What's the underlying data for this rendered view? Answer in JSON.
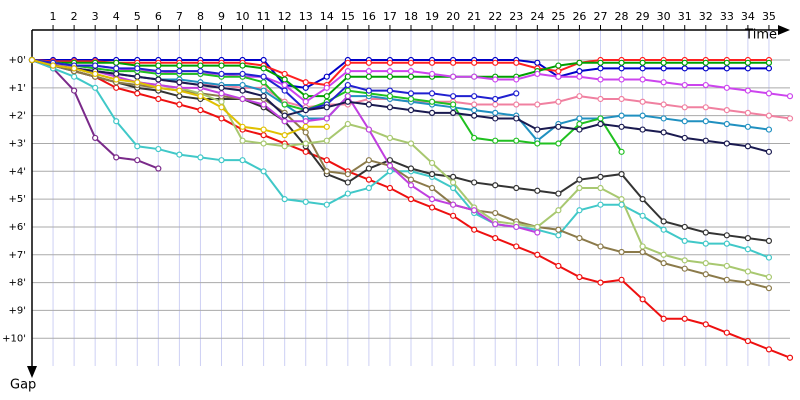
{
  "chart_data": {
    "type": "line",
    "x_label": "Time",
    "y_label": "Gap",
    "x": [
      0,
      1,
      2,
      3,
      4,
      5,
      6,
      7,
      8,
      9,
      10,
      11,
      12,
      13,
      14,
      15,
      16,
      17,
      18,
      19,
      20,
      21,
      22,
      23,
      24,
      25,
      26,
      27,
      28,
      29,
      30,
      31,
      32,
      33,
      34,
      35,
      36
    ],
    "xlim": [
      0,
      36
    ],
    "xticks": [
      1,
      2,
      3,
      4,
      5,
      6,
      7,
      8,
      9,
      10,
      11,
      12,
      13,
      14,
      15,
      16,
      17,
      18,
      19,
      20,
      21,
      22,
      23,
      24,
      25,
      26,
      27,
      28,
      29,
      30,
      31,
      32,
      33,
      34,
      35
    ],
    "ylim": [
      -1.1,
      11.5
    ],
    "yticks": [
      {
        "value": 0,
        "label": "+0'"
      },
      {
        "value": 1,
        "label": "+1'"
      },
      {
        "value": 2,
        "label": "+2'"
      },
      {
        "value": 3,
        "label": "+3'"
      },
      {
        "value": 4,
        "label": "+4'"
      },
      {
        "value": 5,
        "label": "+5'"
      },
      {
        "value": 6,
        "label": "+6'"
      },
      {
        "value": 7,
        "label": "+7'"
      },
      {
        "value": 8,
        "label": "+8'"
      },
      {
        "value": 9,
        "label": "+9'"
      },
      {
        "value": 10,
        "label": "+10'"
      }
    ],
    "grid": true,
    "series": [
      {
        "color": "#0000c8",
        "values": [
          0,
          0,
          0,
          0,
          0,
          0,
          0,
          0,
          0,
          0,
          0,
          0,
          0.9,
          1.0,
          0.6,
          0,
          0,
          0,
          0,
          0,
          0,
          0,
          0,
          0,
          0.1,
          0.6,
          0.4,
          0.3,
          0.3,
          0.3,
          0.3,
          0.3,
          0.3,
          0.3,
          0.3,
          0.3,
          null
        ]
      },
      {
        "color": "#ff2020",
        "values": [
          0,
          0.05,
          0.05,
          0.05,
          0.1,
          0.1,
          0.1,
          0.1,
          0.1,
          0.1,
          0.1,
          0.2,
          0.5,
          0.8,
          0.9,
          0.1,
          0.1,
          0.1,
          0.1,
          0.1,
          0.1,
          0.1,
          0.1,
          0.1,
          0.3,
          0.4,
          0.1,
          0,
          0,
          0,
          0,
          0,
          0,
          0,
          0,
          0,
          null
        ]
      },
      {
        "color": "#00a000",
        "values": [
          0,
          0.1,
          0.1,
          0.1,
          0.1,
          0.2,
          0.2,
          0.2,
          0.2,
          0.2,
          0.2,
          0.3,
          0.7,
          1.3,
          1.3,
          0.6,
          0.6,
          0.6,
          0.6,
          0.6,
          0.6,
          0.6,
          0.6,
          0.6,
          0.4,
          0.2,
          0.1,
          0.1,
          0.1,
          0.1,
          0.1,
          0.1,
          0.1,
          0.1,
          0.1,
          0.1,
          null
        ]
      },
      {
        "color": "#cc44ee",
        "values": [
          0,
          0.1,
          0.2,
          0.2,
          0.3,
          0.4,
          0.4,
          0.5,
          0.5,
          0.5,
          0.6,
          0.6,
          0.9,
          1.5,
          1.0,
          0.4,
          0.4,
          0.4,
          0.4,
          0.5,
          0.6,
          0.6,
          0.7,
          0.7,
          0.5,
          0.6,
          0.6,
          0.7,
          0.7,
          0.7,
          0.8,
          0.9,
          0.9,
          1.0,
          1.1,
          1.2,
          1.3
        ]
      },
      {
        "color": "#ee1010",
        "values": [
          0,
          0.1,
          0.4,
          0.6,
          1.0,
          1.2,
          1.4,
          1.6,
          1.8,
          2.1,
          2.5,
          2.7,
          3.0,
          3.3,
          3.6,
          4.0,
          4.3,
          4.6,
          5.0,
          5.3,
          5.6,
          6.1,
          6.4,
          6.7,
          7.0,
          7.4,
          7.8,
          8.0,
          7.9,
          8.6,
          9.3,
          9.3,
          9.5,
          9.8,
          10.1,
          10.4,
          10.7
        ]
      },
      {
        "color": "#7a2a8a",
        "values": [
          0,
          0.3,
          1.1,
          2.8,
          3.5,
          3.6,
          3.9,
          null,
          null,
          null,
          null,
          null,
          null,
          null,
          null,
          null,
          null,
          null,
          null,
          null,
          null,
          null,
          null,
          null,
          null,
          null,
          null,
          null,
          null,
          null,
          null,
          null,
          null,
          null,
          null,
          null,
          null
        ]
      },
      {
        "color": "#40c8c8",
        "values": [
          0,
          0.3,
          0.6,
          1.0,
          2.2,
          3.1,
          3.2,
          3.4,
          3.5,
          3.6,
          3.6,
          4.0,
          5.0,
          5.1,
          5.2,
          4.8,
          4.6,
          4.0,
          4.0,
          4.2,
          4.6,
          5.5,
          5.9,
          6.0,
          6.1,
          6.3,
          5.4,
          5.2,
          5.2,
          5.6,
          6.1,
          6.5,
          6.6,
          6.6,
          6.8,
          7.1,
          null
        ]
      },
      {
        "color": "#333333",
        "values": [
          0,
          0.2,
          0.4,
          0.6,
          0.8,
          1.0,
          1.1,
          1.3,
          1.4,
          1.4,
          1.4,
          1.7,
          2.2,
          3.1,
          4.1,
          4.4,
          3.9,
          3.6,
          3.9,
          4.1,
          4.2,
          4.4,
          4.5,
          4.6,
          4.7,
          4.8,
          4.3,
          4.2,
          4.1,
          5.0,
          5.8,
          6.0,
          6.2,
          6.3,
          6.4,
          6.5,
          null
        ]
      },
      {
        "color": "#8b7a4a",
        "values": [
          0,
          0.2,
          0.4,
          0.6,
          0.8,
          0.9,
          1.0,
          1.1,
          1.2,
          1.3,
          1.4,
          1.4,
          1.9,
          2.6,
          4.0,
          4.1,
          3.6,
          3.8,
          4.3,
          4.6,
          5.2,
          5.4,
          5.5,
          5.8,
          6.0,
          6.1,
          6.4,
          6.7,
          6.9,
          6.9,
          7.3,
          7.5,
          7.7,
          7.9,
          8.0,
          8.2,
          null
        ]
      },
      {
        "color": "#a8c870",
        "values": [
          0,
          0.2,
          0.3,
          0.5,
          0.7,
          0.8,
          0.9,
          1.0,
          1.2,
          1.5,
          2.9,
          3.0,
          3.1,
          3.0,
          2.9,
          2.3,
          2.5,
          2.8,
          3.0,
          3.7,
          4.4,
          5.3,
          5.8,
          5.9,
          6.0,
          5.4,
          4.6,
          4.6,
          5.0,
          6.7,
          7.0,
          7.2,
          7.3,
          7.4,
          7.6,
          7.8,
          null
        ]
      },
      {
        "color": "#f080a0",
        "values": [
          0,
          0.1,
          0.3,
          0.4,
          0.5,
          0.6,
          0.7,
          0.8,
          0.9,
          0.9,
          1.0,
          1.0,
          1.5,
          1.7,
          1.6,
          1.6,
          1.4,
          1.4,
          1.5,
          1.5,
          1.5,
          1.6,
          1.6,
          1.6,
          1.6,
          1.5,
          1.3,
          1.4,
          1.4,
          1.5,
          1.6,
          1.7,
          1.7,
          1.8,
          1.9,
          2.0,
          2.1
        ]
      },
      {
        "color": "#2090c0",
        "values": [
          0,
          0.2,
          0.3,
          0.4,
          0.5,
          0.6,
          0.7,
          0.7,
          0.8,
          0.9,
          0.9,
          1.1,
          1.6,
          2.1,
          2.1,
          1.3,
          1.3,
          1.4,
          1.5,
          1.6,
          1.7,
          1.8,
          1.9,
          2.0,
          2.9,
          2.3,
          2.1,
          2.1,
          2.0,
          2.0,
          2.1,
          2.2,
          2.2,
          2.3,
          2.4,
          2.5,
          null
        ]
      },
      {
        "color": "#20c020",
        "values": [
          0,
          0.1,
          0.2,
          0.3,
          0.4,
          0.4,
          0.5,
          0.5,
          0.5,
          0.6,
          0.6,
          0.8,
          1.6,
          1.8,
          1.5,
          1.1,
          1.2,
          1.3,
          1.4,
          1.5,
          1.6,
          2.8,
          2.9,
          2.9,
          3.0,
          3.0,
          2.3,
          2.1,
          3.3,
          null,
          null,
          null,
          null,
          null,
          null,
          null,
          null
        ]
      },
      {
        "color": "#2020d0",
        "values": [
          0,
          0.1,
          0.2,
          0.2,
          0.3,
          0.3,
          0.4,
          0.4,
          0.4,
          0.5,
          0.5,
          0.6,
          1.1,
          1.8,
          1.6,
          0.9,
          1.1,
          1.1,
          1.2,
          1.2,
          1.3,
          1.3,
          1.4,
          1.2,
          null,
          null,
          null,
          null,
          null,
          null,
          null,
          null,
          null,
          null,
          null,
          null,
          null
        ]
      },
      {
        "color": "#c040e0",
        "values": [
          0,
          0.2,
          0.3,
          0.4,
          0.6,
          0.8,
          0.9,
          1.0,
          1.0,
          1.2,
          1.4,
          1.6,
          2.2,
          2.2,
          2.1,
          1.3,
          2.5,
          3.8,
          4.5,
          5.0,
          5.2,
          5.4,
          5.9,
          6.0,
          6.2,
          null,
          null,
          null,
          null,
          null,
          null,
          null,
          null,
          null,
          null,
          null,
          null
        ]
      },
      {
        "color": "#1a1a50",
        "values": [
          0,
          0.2,
          0.3,
          0.4,
          0.5,
          0.6,
          0.7,
          0.8,
          0.9,
          1.0,
          1.1,
          1.3,
          2.0,
          1.8,
          1.7,
          1.5,
          1.6,
          1.7,
          1.8,
          1.9,
          1.9,
          2.0,
          2.1,
          2.1,
          2.5,
          2.4,
          2.5,
          2.3,
          2.4,
          2.5,
          2.6,
          2.8,
          2.9,
          3.0,
          3.1,
          3.3,
          null
        ]
      },
      {
        "color": "#e0c000",
        "values": [
          0,
          0.2,
          0.3,
          0.5,
          0.7,
          0.8,
          1.0,
          1.1,
          1.3,
          1.7,
          2.4,
          2.5,
          2.7,
          2.4,
          2.4,
          null,
          null,
          null,
          null,
          null,
          null,
          null,
          null,
          null,
          null,
          null,
          null,
          null,
          null,
          null,
          null,
          null,
          null,
          null,
          null,
          null,
          null
        ]
      }
    ]
  }
}
